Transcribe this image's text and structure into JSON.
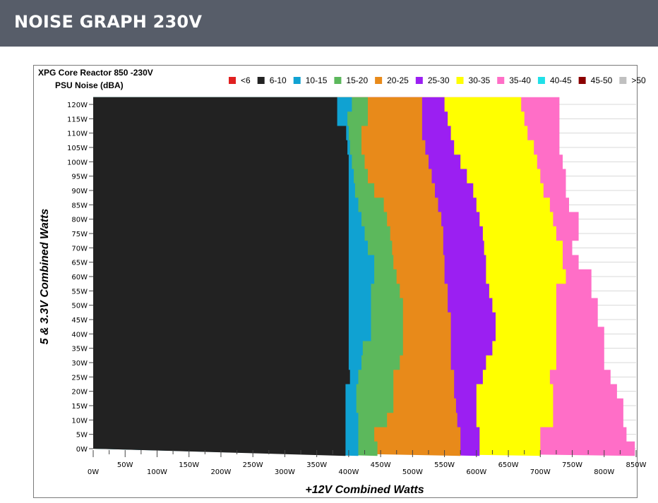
{
  "header": {
    "title": "NOISE GRAPH 230V"
  },
  "chart_data": {
    "type": "heatmap",
    "title": "XPG Core Reactor 850 -230V",
    "subtitle": "PSU Noise (dBA)",
    "xlabel": "+12V Combined Watts",
    "ylabel": "5 & 3.3V Combined Watts",
    "x_ticks": [
      "0W",
      "50W",
      "100W",
      "150W",
      "200W",
      "250W",
      "300W",
      "350W",
      "400W",
      "450W",
      "500W",
      "550W",
      "600W",
      "650W",
      "700W",
      "750W",
      "800W",
      "850W"
    ],
    "y_ticks": [
      "0W",
      "5W",
      "10W",
      "15W",
      "20W",
      "25W",
      "30W",
      "35W",
      "40W",
      "45W",
      "50W",
      "55W",
      "60W",
      "65W",
      "70W",
      "75W",
      "80W",
      "85W",
      "90W",
      "95W",
      "100W",
      "105W",
      "110W",
      "115W",
      "120W"
    ],
    "xlim": [
      0,
      850
    ],
    "ylim": [
      0,
      120
    ],
    "grid": true,
    "legend_position": "top",
    "legend": [
      {
        "label": "<6",
        "color": "#e02020"
      },
      {
        "label": "6-10",
        "color": "#222222"
      },
      {
        "label": "10-15",
        "color": "#10a2d2"
      },
      {
        "label": "15-20",
        "color": "#5cb85c"
      },
      {
        "label": "20-25",
        "color": "#e88a1a"
      },
      {
        "label": "25-30",
        "color": "#9b1ff2"
      },
      {
        "label": "30-35",
        "color": "#ffff00"
      },
      {
        "label": "35-40",
        "color": "#ff6ec7"
      },
      {
        "label": "40-45",
        "color": "#20e0e8"
      },
      {
        "label": "45-50",
        "color": "#8b0000"
      },
      {
        "label": ">50",
        "color": "#c0c0c0"
      }
    ],
    "bands": [
      {
        "range": "6-10",
        "y": [
          0,
          5,
          10,
          15,
          20,
          25,
          30,
          35,
          40,
          45,
          50,
          55,
          60,
          65,
          70,
          75,
          80,
          85,
          90,
          95,
          100,
          105,
          110,
          115,
          120
        ],
        "x_end": [
          395,
          395,
          395,
          395,
          395,
          402,
          400,
          400,
          400,
          400,
          400,
          400,
          400,
          400,
          400,
          400,
          400,
          400,
          400,
          400,
          400,
          398,
          396,
          382,
          382
        ]
      },
      {
        "range": "10-15",
        "y": [
          0,
          5,
          10,
          15,
          20,
          25,
          30,
          35,
          40,
          45,
          50,
          55,
          60,
          65,
          70,
          75,
          80,
          85,
          90,
          95,
          100,
          105,
          110,
          115,
          120
        ],
        "x_end": [
          415,
          415,
          415,
          412,
          412,
          415,
          420,
          422,
          435,
          435,
          435,
          435,
          440,
          440,
          430,
          425,
          420,
          415,
          410,
          408,
          405,
          402,
          400,
          398,
          405
        ]
      },
      {
        "range": "15-20",
        "y": [
          0,
          5,
          10,
          15,
          20,
          25,
          30,
          35,
          40,
          45,
          50,
          55,
          60,
          65,
          70,
          75,
          80,
          85,
          90,
          95,
          100,
          105,
          110,
          115,
          120
        ],
        "x_end": [
          445,
          440,
          460,
          470,
          470,
          470,
          480,
          485,
          485,
          485,
          485,
          480,
          475,
          470,
          468,
          465,
          460,
          455,
          440,
          430,
          425,
          420,
          420,
          430,
          430
        ]
      },
      {
        "range": "20-25",
        "y": [
          0,
          5,
          10,
          15,
          20,
          25,
          30,
          35,
          40,
          45,
          50,
          55,
          60,
          65,
          70,
          75,
          80,
          85,
          90,
          95,
          100,
          105,
          110,
          115,
          120
        ],
        "x_end": [
          575,
          575,
          570,
          568,
          565,
          565,
          560,
          560,
          560,
          560,
          555,
          555,
          550,
          550,
          548,
          548,
          545,
          540,
          535,
          530,
          525,
          520,
          515,
          515,
          515
        ]
      },
      {
        "range": "25-30",
        "y": [
          0,
          5,
          10,
          15,
          20,
          25,
          30,
          35,
          40,
          45,
          50,
          55,
          60,
          65,
          70,
          75,
          80,
          85,
          90,
          95,
          100,
          105,
          110,
          115,
          120
        ],
        "x_end": [
          605,
          605,
          600,
          600,
          600,
          610,
          615,
          625,
          630,
          630,
          625,
          620,
          615,
          615,
          612,
          610,
          605,
          600,
          595,
          585,
          575,
          565,
          560,
          555,
          550
        ]
      },
      {
        "range": "30-35",
        "y": [
          0,
          5,
          10,
          15,
          20,
          25,
          30,
          35,
          40,
          45,
          50,
          55,
          60,
          65,
          70,
          75,
          80,
          85,
          90,
          95,
          100,
          105,
          110,
          115,
          120
        ],
        "x_end": [
          700,
          700,
          720,
          720,
          720,
          715,
          725,
          725,
          725,
          725,
          725,
          725,
          740,
          735,
          735,
          725,
          720,
          715,
          705,
          700,
          695,
          690,
          680,
          675,
          670
        ]
      },
      {
        "range": "35-40",
        "y": [
          0,
          5,
          10,
          15,
          20,
          25,
          30,
          35,
          40,
          45,
          50,
          55,
          60,
          65,
          70,
          75,
          80,
          85,
          90,
          95,
          100,
          105,
          110,
          115,
          120
        ],
        "x_end": [
          848,
          835,
          830,
          830,
          820,
          810,
          800,
          800,
          800,
          790,
          790,
          780,
          780,
          760,
          750,
          760,
          760,
          745,
          740,
          740,
          735,
          730,
          730,
          730,
          730
        ]
      }
    ]
  }
}
